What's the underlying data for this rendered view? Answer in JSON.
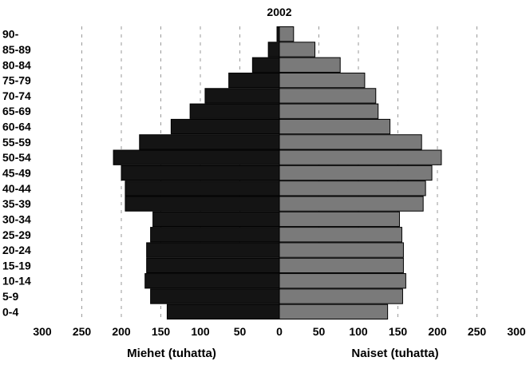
{
  "chart_data": {
    "type": "bar",
    "orientation": "horizontal",
    "subtype": "population-pyramid",
    "title": "2002",
    "xlabel_left": "Miehet (tuhatta)",
    "xlabel_right": "Naiset (tuhatta)",
    "xticks": [
      "300",
      "250",
      "200",
      "150",
      "100",
      "50",
      "0",
      "50",
      "100",
      "150",
      "200",
      "250",
      "300"
    ],
    "xlim": [
      -300,
      300
    ],
    "categories": [
      "0-4",
      "5-9",
      "10-14",
      "15-19",
      "20-24",
      "25-29",
      "30-34",
      "35-39",
      "40-44",
      "45-49",
      "50-54",
      "55-59",
      "60-64",
      "65-69",
      "70-74",
      "75-79",
      "80-84",
      "85-89",
      "90-"
    ],
    "series": [
      {
        "name": "Miehet",
        "values": [
          142,
          163,
          170,
          168,
          168,
          163,
          160,
          195,
          195,
          200,
          210,
          177,
          137,
          113,
          94,
          64,
          34,
          14,
          3
        ]
      },
      {
        "name": "Naiset",
        "values": [
          137,
          156,
          160,
          157,
          157,
          155,
          152,
          182,
          185,
          193,
          205,
          180,
          140,
          125,
          122,
          108,
          77,
          45,
          18
        ]
      }
    ],
    "grid": "vertical-dashed",
    "colors": {
      "men": "#141414",
      "women": "#7a7a7a",
      "outline": "#000000"
    }
  }
}
